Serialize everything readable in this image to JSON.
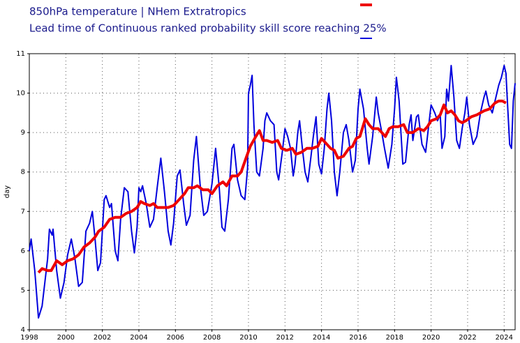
{
  "chart_data": {
    "type": "line",
    "ylabel": "day",
    "xlim": [
      1998,
      2024.6
    ],
    "xticks": [
      1998,
      2000,
      2002,
      2004,
      2006,
      2008,
      2010,
      2012,
      2014,
      2016,
      2018,
      2020,
      2022,
      2024
    ],
    "ylim": [
      4,
      11
    ],
    "yticks": [
      4,
      5,
      6,
      7,
      8,
      9,
      10,
      11
    ],
    "grid": true,
    "series": [
      {
        "name": "850hPa temperature | NHem Extratropics",
        "color": "#ee0000",
        "x": [
          1998.5,
          1998.7,
          1999.0,
          1999.2,
          1999.5,
          1999.8,
          2000.1,
          2000.4,
          2000.7,
          2001.0,
          2001.3,
          2001.6,
          2001.8,
          2002.1,
          2002.4,
          2002.7,
          2003.0,
          2003.3,
          2003.6,
          2003.9,
          2004.1,
          2004.3,
          2004.6,
          2004.8,
          2005.0,
          2005.3,
          2005.6,
          2005.9,
          2006.2,
          2006.5,
          2006.7,
          2007.0,
          2007.2,
          2007.5,
          2007.8,
          2008.0,
          2008.3,
          2008.6,
          2008.8,
          2009.1,
          2009.4,
          2009.6,
          2009.9,
          2010.1,
          2010.4,
          2010.6,
          2010.8,
          2011.0,
          2011.3,
          2011.6,
          2011.8,
          2012.1,
          2012.4,
          2012.6,
          2012.9,
          2013.2,
          2013.5,
          2013.8,
          2014.0,
          2014.2,
          2014.5,
          2014.7,
          2014.9,
          2015.2,
          2015.5,
          2015.7,
          2015.9,
          2016.1,
          2016.4,
          2016.6,
          2016.8,
          2017.1,
          2017.3,
          2017.5,
          2017.7,
          2017.9,
          2018.2,
          2018.5,
          2018.7,
          2019.0,
          2019.3,
          2019.6,
          2019.8,
          2020.0,
          2020.3,
          2020.5,
          2020.7,
          2020.9,
          2021.1,
          2021.3,
          2021.5,
          2021.7,
          2021.9,
          2022.2,
          2022.5,
          2022.7,
          2022.9,
          2023.2,
          2023.5,
          2023.7,
          2023.9,
          2024.1
        ],
        "values": [
          5.45,
          5.55,
          5.5,
          5.5,
          5.75,
          5.65,
          5.75,
          5.8,
          5.9,
          6.1,
          6.2,
          6.35,
          6.5,
          6.6,
          6.8,
          6.85,
          6.85,
          6.95,
          7.0,
          7.1,
          7.25,
          7.2,
          7.15,
          7.2,
          7.1,
          7.1,
          7.1,
          7.15,
          7.3,
          7.45,
          7.6,
          7.6,
          7.65,
          7.55,
          7.55,
          7.45,
          7.65,
          7.75,
          7.65,
          7.9,
          7.9,
          8.0,
          8.4,
          8.65,
          8.9,
          9.05,
          8.8,
          8.8,
          8.75,
          8.8,
          8.6,
          8.55,
          8.6,
          8.45,
          8.5,
          8.6,
          8.6,
          8.65,
          8.85,
          8.75,
          8.6,
          8.55,
          8.35,
          8.4,
          8.6,
          8.65,
          8.85,
          8.9,
          9.35,
          9.2,
          9.1,
          9.1,
          9.0,
          8.9,
          9.1,
          9.15,
          9.15,
          9.2,
          9.0,
          9.0,
          9.1,
          9.05,
          9.15,
          9.3,
          9.35,
          9.45,
          9.7,
          9.5,
          9.55,
          9.45,
          9.3,
          9.25,
          9.3,
          9.4,
          9.45,
          9.5,
          9.55,
          9.6,
          9.75,
          9.8,
          9.8,
          9.75
        ]
      },
      {
        "name": "Lead time of Continuous ranked probability skill score reaching 25%",
        "color": "#0000dd",
        "x": [
          1998.0,
          1998.1,
          1998.3,
          1998.5,
          1998.7,
          1999.0,
          1999.1,
          1999.25,
          1999.3,
          1999.5,
          1999.7,
          1999.9,
          2000.1,
          2000.3,
          2000.5,
          2000.7,
          2000.9,
          2001.1,
          2001.3,
          2001.45,
          2001.6,
          2001.75,
          2001.9,
          2002.1,
          2002.2,
          2002.4,
          2002.5,
          2002.7,
          2002.85,
          2003.0,
          2003.2,
          2003.4,
          2003.6,
          2003.75,
          2003.9,
          2004.0,
          2004.1,
          2004.2,
          2004.4,
          2004.6,
          2004.8,
          2005.0,
          2005.2,
          2005.4,
          2005.6,
          2005.75,
          2005.9,
          2006.1,
          2006.25,
          2006.45,
          2006.6,
          2006.8,
          2007.0,
          2007.15,
          2007.35,
          2007.55,
          2007.75,
          2008.0,
          2008.2,
          2008.4,
          2008.55,
          2008.7,
          2008.9,
          2009.1,
          2009.2,
          2009.4,
          2009.6,
          2009.8,
          2009.95,
          2010.0,
          2010.1,
          2010.2,
          2010.3,
          2010.45,
          2010.6,
          2010.8,
          2010.9,
          2011.0,
          2011.2,
          2011.4,
          2011.55,
          2011.65,
          2011.85,
          2012.0,
          2012.15,
          2012.3,
          2012.45,
          2012.55,
          2012.7,
          2012.8,
          2012.95,
          2013.1,
          2013.25,
          2013.4,
          2013.55,
          2013.7,
          2013.85,
          2014.0,
          2014.15,
          2014.3,
          2014.4,
          2014.55,
          2014.7,
          2014.85,
          2015.0,
          2015.2,
          2015.35,
          2015.5,
          2015.7,
          2015.85,
          2016.0,
          2016.1,
          2016.3,
          2016.5,
          2016.6,
          2016.8,
          2017.0,
          2017.1,
          2017.3,
          2017.45,
          2017.65,
          2017.85,
          2018.0,
          2018.1,
          2018.25,
          2018.45,
          2018.6,
          2018.8,
          2018.9,
          2019.0,
          2019.2,
          2019.3,
          2019.5,
          2019.7,
          2019.85,
          2020.0,
          2020.2,
          2020.35,
          2020.5,
          2020.6,
          2020.75,
          2020.85,
          2020.95,
          2021.1,
          2021.25,
          2021.4,
          2021.55,
          2021.7,
          2021.85,
          2021.95,
          2022.1,
          2022.3,
          2022.5,
          2022.7,
          2022.9,
          2023.0,
          2023.15,
          2023.35,
          2023.5,
          2023.7,
          2023.85,
          2024.0,
          2024.1,
          2024.2,
          2024.3,
          2024.4,
          2024.5,
          2024.6
        ],
        "values": [
          6.0,
          6.3,
          5.5,
          4.3,
          4.6,
          5.8,
          6.55,
          6.4,
          6.55,
          5.5,
          4.8,
          5.2,
          5.9,
          6.3,
          5.8,
          5.1,
          5.2,
          6.5,
          6.7,
          7.0,
          6.3,
          5.5,
          5.7,
          7.3,
          7.4,
          7.1,
          7.2,
          6.0,
          5.75,
          6.8,
          7.6,
          7.5,
          6.5,
          5.95,
          6.6,
          7.6,
          7.5,
          7.65,
          7.2,
          6.6,
          6.8,
          7.6,
          8.35,
          7.5,
          6.5,
          6.15,
          6.7,
          7.9,
          8.05,
          7.2,
          6.65,
          6.9,
          8.3,
          8.9,
          7.7,
          6.9,
          7.0,
          7.7,
          8.6,
          7.6,
          6.6,
          6.5,
          7.3,
          8.6,
          8.7,
          7.8,
          7.4,
          7.3,
          8.1,
          10.0,
          10.2,
          10.45,
          9.2,
          8.0,
          7.9,
          8.6,
          9.3,
          9.5,
          9.3,
          9.2,
          8.0,
          7.8,
          8.5,
          9.1,
          8.9,
          8.6,
          7.9,
          8.2,
          9.0,
          9.3,
          8.6,
          8.0,
          7.75,
          8.3,
          8.9,
          9.4,
          8.2,
          7.95,
          8.6,
          9.6,
          10.0,
          9.3,
          8.0,
          7.4,
          8.0,
          9.0,
          9.2,
          8.8,
          8.0,
          8.3,
          9.6,
          10.1,
          9.6,
          8.6,
          8.2,
          8.9,
          9.9,
          9.5,
          9.0,
          8.6,
          8.1,
          8.7,
          9.6,
          10.4,
          9.8,
          8.2,
          8.25,
          9.2,
          9.45,
          8.8,
          9.4,
          9.45,
          8.7,
          8.5,
          9.1,
          9.7,
          9.5,
          9.3,
          9.45,
          8.6,
          8.9,
          10.1,
          9.8,
          10.7,
          9.9,
          8.8,
          8.6,
          9.1,
          9.5,
          9.9,
          9.2,
          8.7,
          8.9,
          9.5,
          9.9,
          10.05,
          9.7,
          9.5,
          9.8,
          10.2,
          10.4,
          10.7,
          10.5,
          9.6,
          8.7,
          8.6,
          9.8,
          10.25
        ]
      }
    ]
  }
}
